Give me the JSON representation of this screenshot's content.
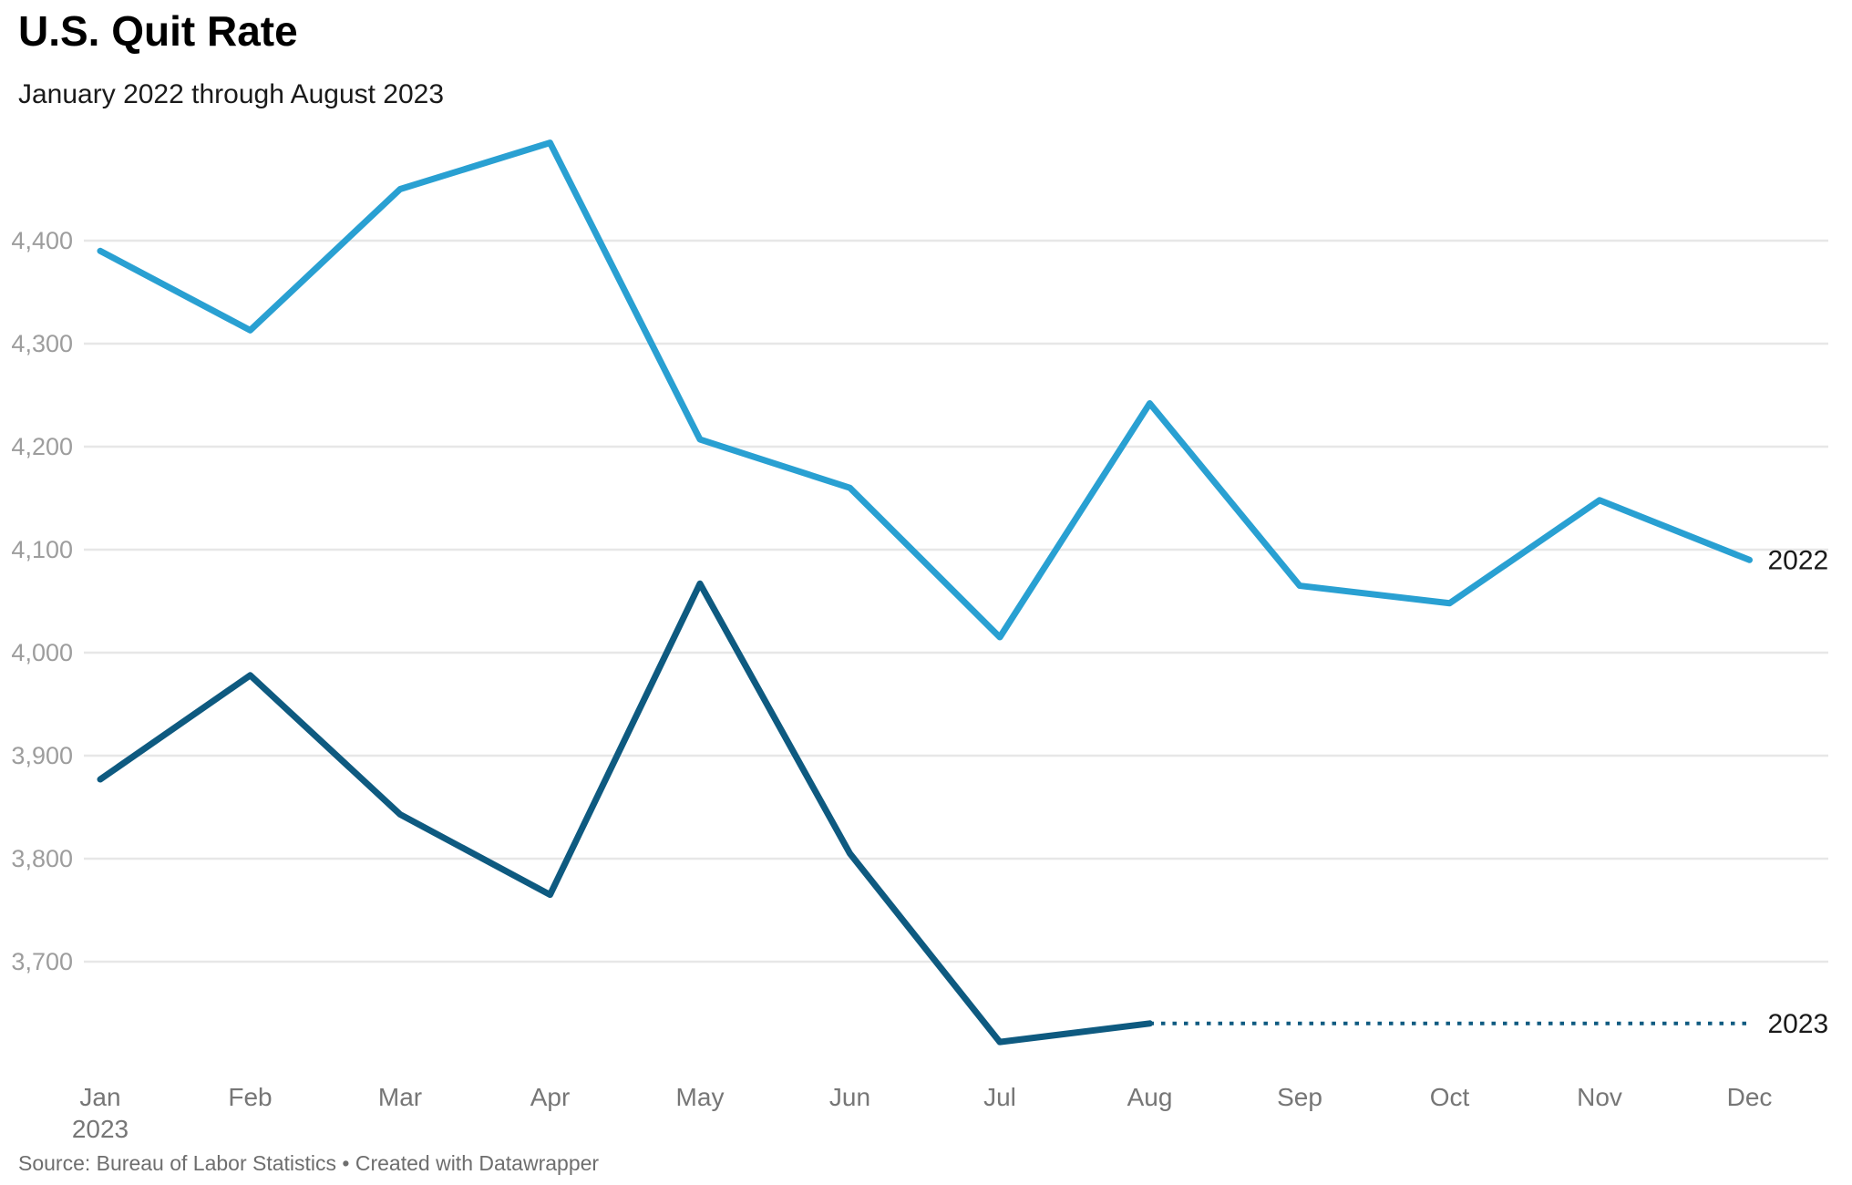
{
  "header": {
    "title": "U.S. Quit Rate",
    "subtitle": "January 2022 through August 2023"
  },
  "footer": {
    "source_prefix": "Source: ",
    "source_name": "Bureau of Labor Statistics",
    "separator": " • ",
    "credit": "Created with Datawrapper"
  },
  "chart_data": {
    "type": "line",
    "title": "U.S. Quit Rate",
    "subtitle": "January 2022 through August 2023",
    "categories": [
      "Jan",
      "Feb",
      "Mar",
      "Apr",
      "May",
      "Jun",
      "Jul",
      "Aug",
      "Sep",
      "Oct",
      "Nov",
      "Dec"
    ],
    "x_first_tick_year": "2023",
    "y_ticks": [
      3700,
      3800,
      3900,
      4000,
      4100,
      4200,
      4300,
      4400
    ],
    "ylim": [
      3600,
      4510
    ],
    "grid": "horizontal",
    "legend_position": "line-end-labels",
    "colors": {
      "series_2022": "#29a0d2",
      "series_2023": "#0e5a80",
      "gridline": "#e7e7e7"
    },
    "series": [
      {
        "name": "2022",
        "color": "#29a0d2",
        "line_style": "solid",
        "values": [
          4390,
          4313,
          4450,
          4495,
          4207,
          4160,
          4015,
          4242,
          4065,
          4048,
          4148,
          4090
        ]
      },
      {
        "name": "2023",
        "color": "#0e5a80",
        "line_style": "solid",
        "values": [
          3877,
          3978,
          3843,
          3765,
          4067,
          3805,
          3622,
          3640
        ],
        "projection": {
          "style": "dotted",
          "from_category": "Aug",
          "to_category": "Dec",
          "value": 3640
        }
      }
    ]
  }
}
